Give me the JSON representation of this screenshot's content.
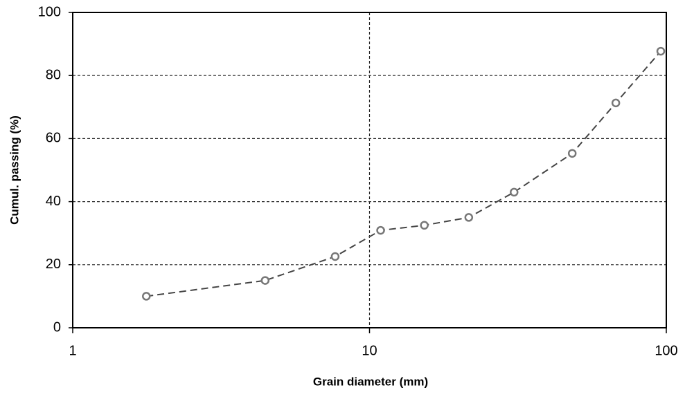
{
  "chart_data": {
    "type": "line",
    "x_label": "Grain diameter  (mm)",
    "y_label": "Cumul. passing (%)",
    "xscale": "log",
    "x": [
      1.77,
      4.45,
      7.66,
      10.9,
      15.3,
      21.6,
      30.7,
      48.2,
      67.6,
      95.8
    ],
    "series": [
      {
        "color": "#444444",
        "values": [
          10,
          15,
          22.6,
          30.9,
          32.5,
          35,
          43,
          55.3,
          71.3,
          87.7
        ]
      }
    ],
    "xlim": [
      1,
      100
    ],
    "xticks": [
      1,
      10,
      100
    ],
    "ylim": [
      0,
      100
    ],
    "yticks": [
      0,
      20,
      40,
      60,
      80,
      100
    ],
    "grid": true
  }
}
